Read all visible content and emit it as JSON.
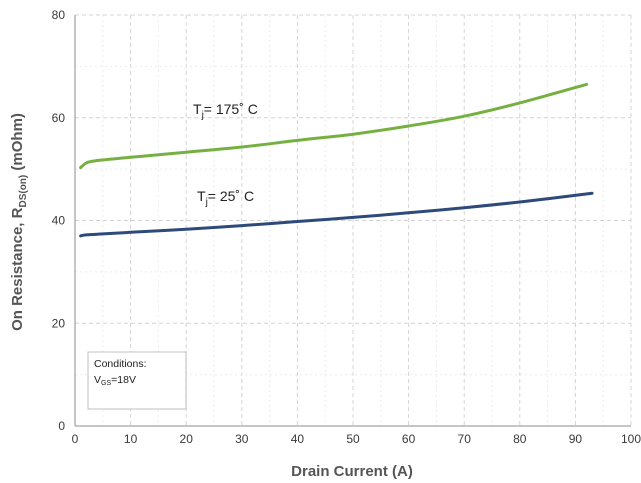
{
  "chart_data": {
    "type": "line",
    "xlabel": "Drain Current (A)",
    "ylabel": {
      "main": "On Resistance, R",
      "sub": "DS(on)",
      "unit": " (mOhm)"
    },
    "xlim": [
      0,
      100
    ],
    "ylim": [
      0,
      80
    ],
    "xticks": [
      "0",
      "10",
      "20",
      "30",
      "40",
      "50",
      "60",
      "70",
      "80",
      "90",
      "100"
    ],
    "yticks": [
      "0",
      "20",
      "40",
      "60",
      "80"
    ],
    "grid": {
      "major": "dashed",
      "minor": "dashed"
    },
    "series": [
      {
        "name": "Tj=175° C",
        "label": {
          "main": "T",
          "sub": "j",
          "rest": "= 175˚ C"
        },
        "color": "#76b041",
        "x": [
          1,
          2,
          3,
          5,
          10,
          15,
          20,
          30,
          40,
          50,
          60,
          70,
          80,
          92
        ],
        "y": [
          50.3,
          51.2,
          51.5,
          51.8,
          52.3,
          52.8,
          53.3,
          54.3,
          55.6,
          56.8,
          58.4,
          60.3,
          62.9,
          66.5
        ]
      },
      {
        "name": "Tj=25° C",
        "label": {
          "main": "T",
          "sub": "j",
          "rest": "= 25˚ C"
        },
        "color": "#2e4a7a",
        "x": [
          1,
          2,
          5,
          10,
          20,
          30,
          40,
          50,
          60,
          70,
          80,
          93
        ],
        "y": [
          37.0,
          37.2,
          37.4,
          37.7,
          38.3,
          39.0,
          39.8,
          40.6,
          41.5,
          42.5,
          43.6,
          45.3
        ]
      }
    ],
    "annotation": {
      "line1": "Conditions:",
      "line2": {
        "main": "V",
        "sub": "GS",
        "rest": "=18V"
      }
    }
  }
}
